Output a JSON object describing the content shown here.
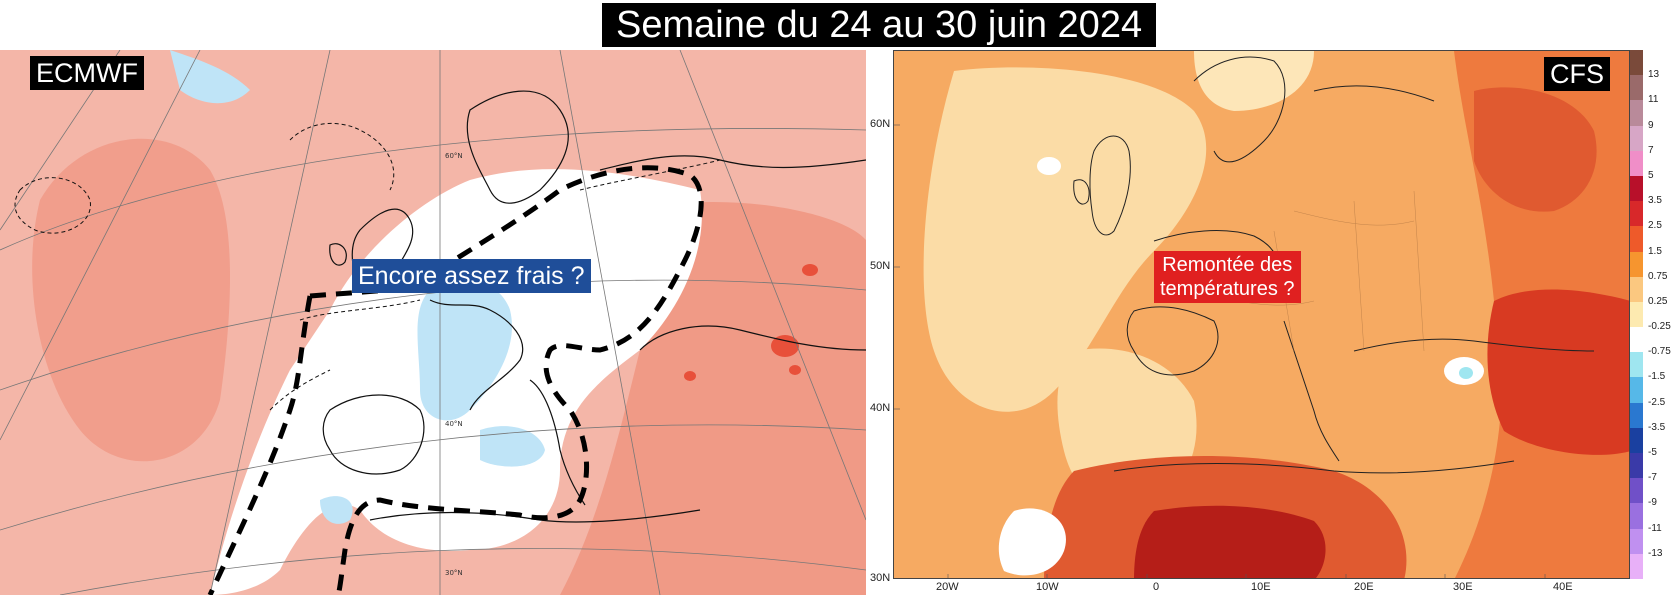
{
  "title": "Semaine du 24 au 30 juin 2024",
  "left_map": {
    "model_label": "ECMWF",
    "callout": "Encore assez frais ?",
    "graticule_labels": [
      "60°N",
      "40°N",
      "30°N"
    ]
  },
  "right_map": {
    "model_label": "CFS",
    "callout_lines": [
      "Remontée des",
      "températures ?"
    ],
    "lat_ticks": [
      "60N",
      "50N",
      "40N",
      "30N"
    ],
    "lon_ticks": [
      "20W",
      "10W",
      "0",
      "10E",
      "20E",
      "30E",
      "40E"
    ]
  },
  "legend": {
    "labels": [
      "13",
      "11",
      "9",
      "7",
      "5",
      "3.5",
      "2.5",
      "1.5",
      "0.75",
      "0.25",
      "-0.25",
      "-0.75",
      "-1.5",
      "-2.5",
      "-3.5",
      "-5",
      "-7",
      "-9",
      "-11",
      "-13"
    ],
    "colors": [
      "#7a4a3a",
      "#9a6a6a",
      "#b98a9a",
      "#d7a6c6",
      "#f08ec8",
      "#b8102a",
      "#d8282a",
      "#ee5a2a",
      "#f6952f",
      "#fbc880",
      "#fdeab0",
      "#ffffff",
      "#9fe6f0",
      "#56b8e8",
      "#2a78d0",
      "#1a40a0",
      "#3a3aa8",
      "#7050c8",
      "#9a70e0",
      "#c090f0",
      "#e8b0f8"
    ]
  },
  "colors": {
    "ecmwf_warm": "#f4b6a8",
    "ecmwf_warmer": "#f08b78",
    "ecmwf_hot": "#e8503a",
    "ecmwf_cool": "#bfe4f7",
    "cfs_light": "#fbdca6",
    "cfs_mid": "#f6aa62",
    "cfs_warm": "#ee7a3e",
    "cfs_hot": "#d83a22",
    "cfs_very_hot": "#b51e18"
  }
}
